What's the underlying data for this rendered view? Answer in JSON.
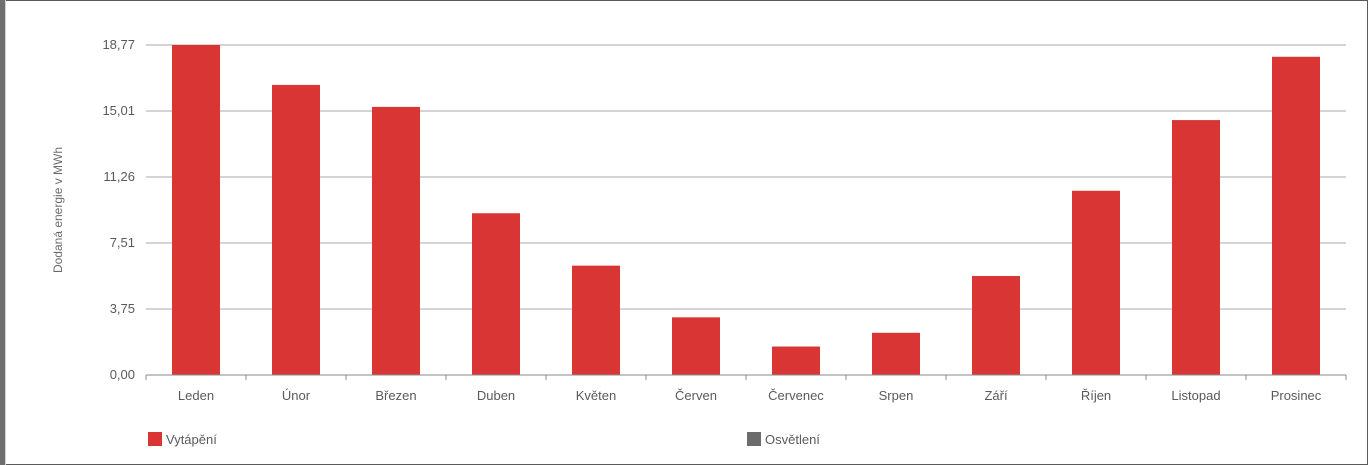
{
  "chart_data": {
    "type": "bar",
    "ylabel": "Dodaná energie v MWh",
    "xlabel": "",
    "categories": [
      "Leden",
      "Únor",
      "Březen",
      "Duben",
      "Květen",
      "Červen",
      "Červenec",
      "Srpen",
      "Září",
      "Říjen",
      "Listopad",
      "Prosinec"
    ],
    "y_ticks": [
      "0,00",
      "3,75",
      "7,51",
      "11,26",
      "15,01",
      "18,77"
    ],
    "ylim": [
      0,
      18.77
    ],
    "grid": true,
    "legend_position": "bottom",
    "series": [
      {
        "name": "Vytápění",
        "color": "#d93535",
        "values": [
          18.77,
          16.5,
          15.25,
          9.2,
          6.22,
          3.28,
          1.62,
          2.4,
          5.63,
          10.48,
          14.5,
          18.1
        ]
      },
      {
        "name": "Osvětlení",
        "color": "#6b6b6b",
        "values": [
          0,
          0,
          0,
          0,
          0,
          0,
          0,
          0,
          0,
          0,
          0,
          0
        ]
      }
    ]
  }
}
